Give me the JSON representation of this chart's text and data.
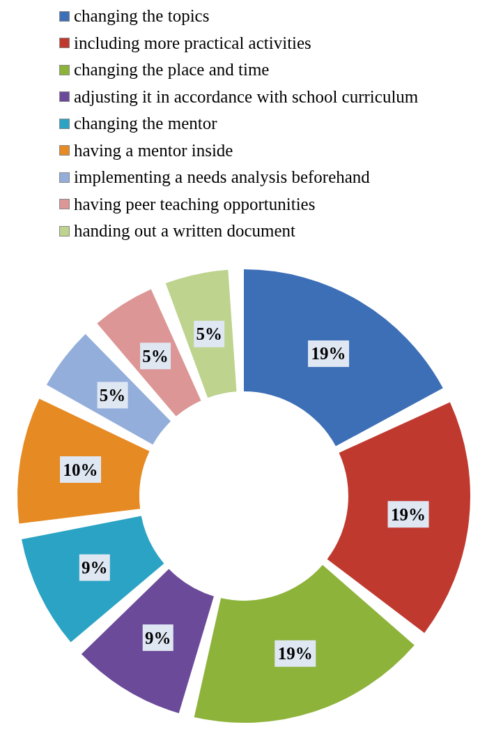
{
  "chart_data": {
    "type": "donut",
    "legend": "top",
    "categories": [
      "changing the topics",
      "including more practical activities",
      "changing the place and time",
      "adjusting it in accordance with school curriculum",
      "changing the mentor",
      "having a mentor inside",
      "implementing a needs analysis beforehand",
      "having peer teaching opportunities",
      "handing out a written document"
    ],
    "values": [
      19,
      19,
      19,
      9,
      9,
      10,
      5,
      5,
      5
    ],
    "value_labels": [
      "19%",
      "19%",
      "19%",
      "9%",
      "9%",
      "10%",
      "5%",
      "5%",
      "5%"
    ],
    "colors": [
      "#3d6fb6",
      "#c0392f",
      "#8db33a",
      "#6b4a9a",
      "#2ba3c4",
      "#e68a23",
      "#93aedb",
      "#dc9695",
      "#bdd38e"
    ]
  }
}
